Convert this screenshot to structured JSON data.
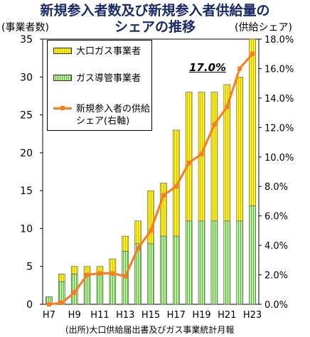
{
  "chart_data": {
    "type": "bar",
    "title_line1": "新規参入者数及び新規参入者供給量の",
    "title_line2": "シェアの推移",
    "ylabel_left": "(事業者数)",
    "ylabel_right": "(供給シェア)",
    "source": "(出所)大口供給届出書及びガス事業統計月報",
    "categories": [
      "H7",
      "H8",
      "H9",
      "H10",
      "H11",
      "H12",
      "H13",
      "H14",
      "H15",
      "H16",
      "H17",
      "H18",
      "H19",
      "H20",
      "H21",
      "H22",
      "H23"
    ],
    "x_tick_labels": [
      "H7",
      "H9",
      "H11",
      "H13",
      "H15",
      "H17",
      "H19",
      "H21",
      "H23"
    ],
    "stacked": true,
    "series": [
      {
        "name": "ガス導管事業者",
        "axis": "left",
        "color": "#55b340",
        "values": [
          1,
          3,
          4,
          4,
          4,
          4,
          7,
          8,
          8,
          9,
          9,
          11,
          11,
          11,
          11,
          11,
          13
        ]
      },
      {
        "name": "大口ガス事業者",
        "axis": "left",
        "color": "#f0e000",
        "values": [
          0,
          1,
          1,
          1,
          1,
          2,
          2,
          3,
          7,
          7,
          14,
          17,
          17,
          17,
          18,
          19,
          22
        ]
      },
      {
        "name": "新規参入者の供給シェア(右軸)",
        "type": "line",
        "axis": "right",
        "color": "#ff7a1a",
        "values": [
          0.0,
          0.1,
          0.8,
          2.0,
          2.1,
          2.1,
          1.9,
          3.8,
          5.0,
          7.4,
          8.0,
          9.6,
          10.2,
          12.2,
          13.4,
          16.0,
          17.0
        ]
      }
    ],
    "ylim_left": [
      0,
      35
    ],
    "yticks_left": [
      0,
      5,
      10,
      15,
      20,
      25,
      30,
      35
    ],
    "ylim_right": [
      0,
      18
    ],
    "yticks_right": [
      "0.0%",
      "2.0%",
      "4.0%",
      "6.0%",
      "8.0%",
      "10.0%",
      "12.0%",
      "14.0%",
      "16.0%",
      "18.0%"
    ],
    "legend": [
      "大口ガス事業者",
      "ガス導管事業者",
      "新規参入者の供給",
      "シェア(右軸)"
    ],
    "legend_position": "top-left",
    "annotation": "17.0%",
    "grid": false
  }
}
